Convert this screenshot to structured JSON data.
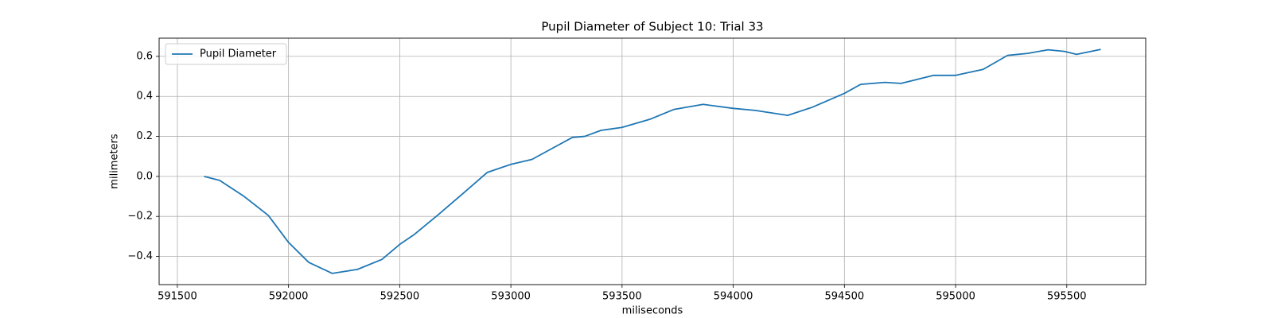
{
  "chart_data": {
    "type": "line",
    "title": "Pupil Diameter of Subject 10: Trial 33",
    "x_label": "miliseconds",
    "y_label": "milimeters",
    "legend": "upper left",
    "grid": true,
    "x": [
      591620,
      591690,
      591800,
      591909,
      592000,
      592091,
      592197,
      592310,
      592420,
      592500,
      592566,
      592675,
      592785,
      592894,
      593000,
      593095,
      593186,
      593277,
      593332,
      593405,
      593500,
      593624,
      593734,
      593865,
      594000,
      594099,
      594245,
      594354,
      594500,
      594573,
      594682,
      594755,
      594901,
      595000,
      595124,
      595234,
      595325,
      595416,
      595489,
      595544,
      595653
    ],
    "series": [
      {
        "name": "Pupil Diameter",
        "color": "#1f77b4",
        "values": [
          0,
          -0.02,
          -0.1,
          -0.195,
          -0.33,
          -0.43,
          -0.485,
          -0.465,
          -0.415,
          -0.34,
          -0.29,
          -0.19,
          -0.085,
          0.02,
          0.06,
          0.085,
          0.14,
          0.195,
          0.2,
          0.23,
          0.245,
          0.285,
          0.335,
          0.36,
          0.34,
          0.33,
          0.305,
          0.345,
          0.415,
          0.46,
          0.47,
          0.465,
          0.505,
          0.505,
          0.535,
          0.605,
          0.615,
          0.633,
          0.625,
          0.61,
          0.635
        ]
      }
    ],
    "xlim": [
      591418,
      595855
    ],
    "xticks": [
      591500,
      592000,
      592500,
      593000,
      593500,
      594000,
      594500,
      595000,
      595500
    ],
    "ylim": [
      -0.541,
      0.691
    ],
    "yticks": [
      {
        "value": -0.4,
        "label": "−0.4"
      },
      {
        "value": -0.2,
        "label": "−0.2"
      },
      {
        "value": 0,
        "label": "0.0"
      },
      0.2,
      0.4,
      0.6
    ]
  }
}
